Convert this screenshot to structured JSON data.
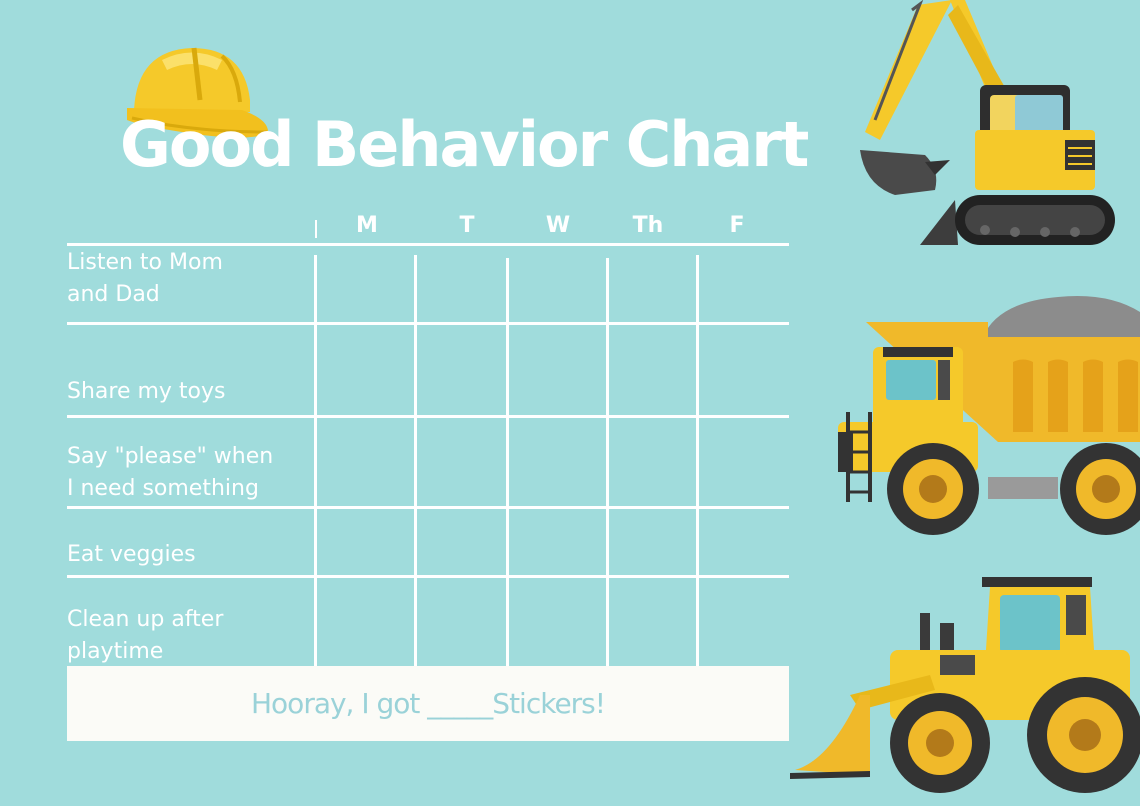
{
  "title": "Good Behavior Chart",
  "days": [
    "M",
    "T",
    "W",
    "Th",
    "F"
  ],
  "behaviors": [
    {
      "lines": [
        "Listen to Mom",
        "and Dad"
      ]
    },
    {
      "lines": [
        "Share my toys"
      ]
    },
    {
      "lines": [
        "Say \"please\" when",
        "I need something"
      ]
    },
    {
      "lines": [
        "Eat veggies"
      ]
    },
    {
      "lines": [
        "Clean up after",
        "playtime"
      ]
    }
  ],
  "footer": "Hooray, I got _____Stickers!",
  "icons": {
    "hat": "hard-hat-icon",
    "excavator": "excavator-icon",
    "dump_truck": "dump-truck-icon",
    "loader": "wheel-loader-icon"
  },
  "colors": {
    "background": "#a0dcdc",
    "yellow": "#f5c92a",
    "footer_bg": "#fbfbf7",
    "footer_text": "#9ad2d8"
  }
}
